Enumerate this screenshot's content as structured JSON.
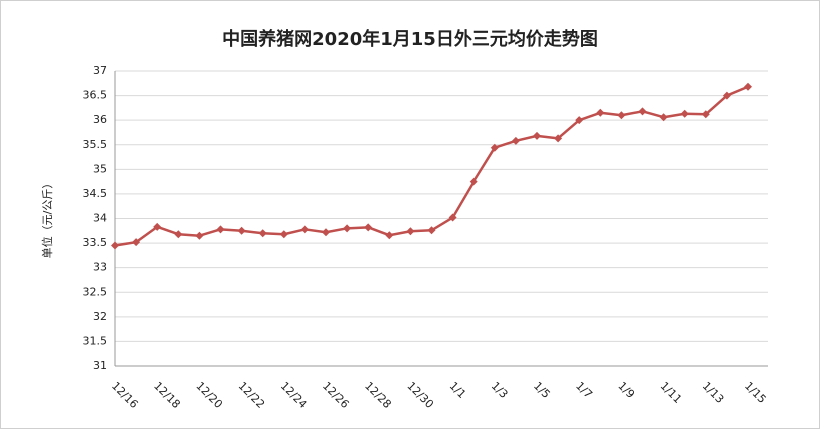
{
  "chart_data": {
    "type": "line",
    "title": "中国养猪网2020年1月15日外三元均价走势图",
    "y_label": "单位（元/公斤）",
    "categories": [
      "12/16",
      null,
      "12/18",
      null,
      "12/20",
      null,
      "12/22",
      null,
      "12/24",
      null,
      "12/26",
      null,
      "12/28",
      null,
      "12/30",
      null,
      "1/1",
      null,
      "1/3",
      null,
      "1/5",
      null,
      "1/7",
      null,
      "1/9",
      null,
      "1/11",
      null,
      "1/13",
      null,
      "1/15"
    ],
    "series": [
      {
        "name": "外三元均价",
        "color": "#c0504d",
        "values": [
          33.45,
          33.52,
          33.83,
          33.68,
          33.65,
          33.78,
          33.75,
          33.7,
          33.68,
          33.78,
          33.72,
          33.8,
          33.82,
          33.66,
          33.74,
          33.76,
          34.02,
          34.75,
          35.44,
          35.58,
          35.68,
          35.63,
          36.0,
          36.15,
          36.1,
          36.18,
          36.06,
          36.13,
          36.12,
          36.5,
          36.68
        ]
      }
    ],
    "ylim": [
      31,
      37
    ],
    "yticks": [
      31,
      31.5,
      32,
      32.5,
      33,
      33.5,
      34,
      34.5,
      35,
      35.5,
      36,
      36.5,
      37
    ],
    "grid": true
  }
}
